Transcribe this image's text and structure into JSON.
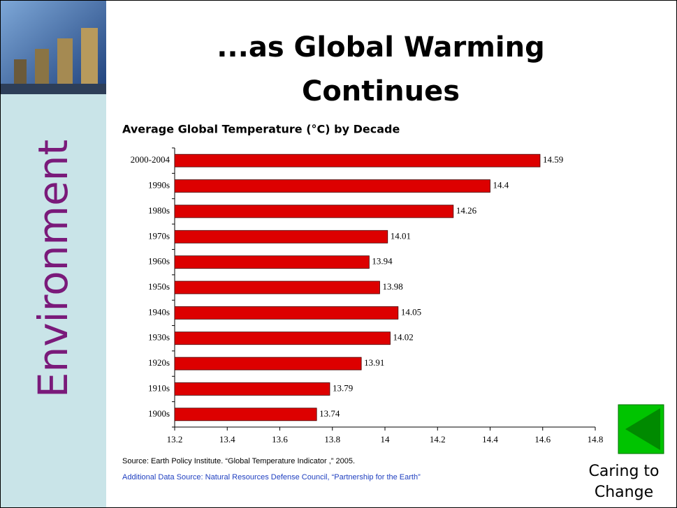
{
  "slide": {
    "title_lines": [
      "...as Global Warming",
      "Continues"
    ],
    "sidebar": "Environment",
    "source": "Source: Earth Policy Institute. “Global Temperature Indicator ,” 2005.",
    "additional_source": "Additional Data Source: Natural Resources Defense Council, “Partnership for the Earth”",
    "footer_lines": [
      "Caring to",
      "Change"
    ]
  },
  "chart_data": {
    "type": "hbar",
    "title": "Average Global Temperature (°C) by Decade",
    "categories": [
      "2000-2004",
      "1990s",
      "1980s",
      "1970s",
      "1960s",
      "1950s",
      "1940s",
      "1930s",
      "1920s",
      "1910s",
      "1900s"
    ],
    "values": [
      14.59,
      14.4,
      14.26,
      14.01,
      13.94,
      13.98,
      14.05,
      14.02,
      13.91,
      13.79,
      13.74
    ],
    "color": "#dd0000",
    "xlim": [
      13.2,
      14.8
    ],
    "xticks": [
      13.2,
      13.4,
      13.6,
      13.8,
      14,
      14.2,
      14.4,
      14.6,
      14.8
    ],
    "grid": false
  }
}
